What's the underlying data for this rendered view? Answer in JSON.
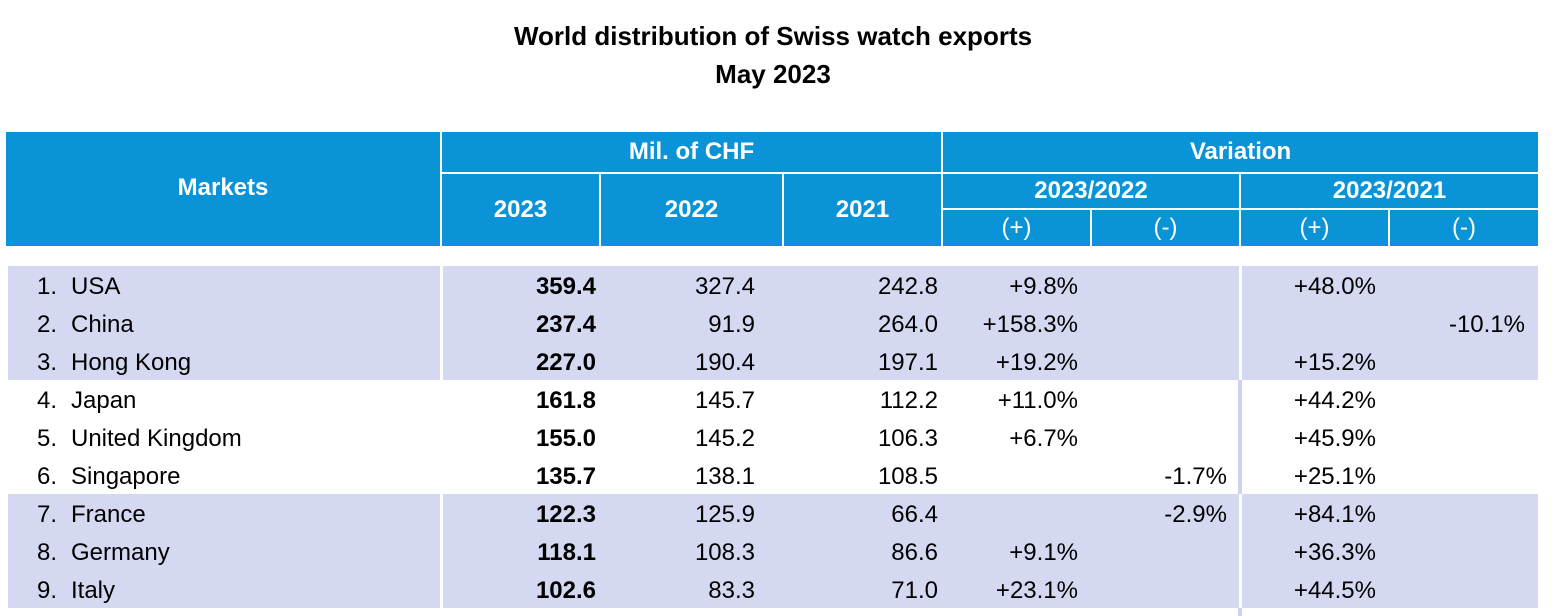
{
  "title": {
    "line1": "World distribution of Swiss watch exports",
    "line2": "May 2023"
  },
  "header": {
    "markets": "Markets",
    "mil_chf": "Mil. of CHF",
    "variation": "Variation",
    "y2023": "2023",
    "y2022": "2022",
    "y2021": "2021",
    "v2023_2022": "2023/2022",
    "v2023_2021": "2023/2021",
    "plus": "(+)",
    "minus": "(-)"
  },
  "colors": {
    "header_bg": "#0a93d6",
    "band_bg": "#d4d8f1"
  },
  "rows": [
    {
      "rank": "1.",
      "market": "USA",
      "v2023": "359.4",
      "v2022": "327.4",
      "v2021": "242.8",
      "p22": "+9.8%",
      "m22": "",
      "p21": "+48.0%",
      "m21": ""
    },
    {
      "rank": "2.",
      "market": "China",
      "v2023": "237.4",
      "v2022": "91.9",
      "v2021": "264.0",
      "p22": "+158.3%",
      "m22": "",
      "p21": "",
      "m21": "-10.1%"
    },
    {
      "rank": "3.",
      "market": "Hong Kong",
      "v2023": "227.0",
      "v2022": "190.4",
      "v2021": "197.1",
      "p22": "+19.2%",
      "m22": "",
      "p21": "+15.2%",
      "m21": ""
    },
    {
      "rank": "4.",
      "market": "Japan",
      "v2023": "161.8",
      "v2022": "145.7",
      "v2021": "112.2",
      "p22": "+11.0%",
      "m22": "",
      "p21": "+44.2%",
      "m21": ""
    },
    {
      "rank": "5.",
      "market": "United Kingdom",
      "v2023": "155.0",
      "v2022": "145.2",
      "v2021": "106.3",
      "p22": "+6.7%",
      "m22": "",
      "p21": "+45.9%",
      "m21": ""
    },
    {
      "rank": "6.",
      "market": "Singapore",
      "v2023": "135.7",
      "v2022": "138.1",
      "v2021": "108.5",
      "p22": "",
      "m22": "-1.7%",
      "p21": "+25.1%",
      "m21": ""
    },
    {
      "rank": "7.",
      "market": "France",
      "v2023": "122.3",
      "v2022": "125.9",
      "v2021": "66.4",
      "p22": "",
      "m22": "-2.9%",
      "p21": "+84.1%",
      "m21": ""
    },
    {
      "rank": "8.",
      "market": "Germany",
      "v2023": "118.1",
      "v2022": "108.3",
      "v2021": "86.6",
      "p22": "+9.1%",
      "m22": "",
      "p21": "+36.3%",
      "m21": ""
    },
    {
      "rank": "9.",
      "market": "Italy",
      "v2023": "102.6",
      "v2022": "83.3",
      "v2021": "71.0",
      "p22": "+23.1%",
      "m22": "",
      "p21": "+44.5%",
      "m21": ""
    }
  ]
}
